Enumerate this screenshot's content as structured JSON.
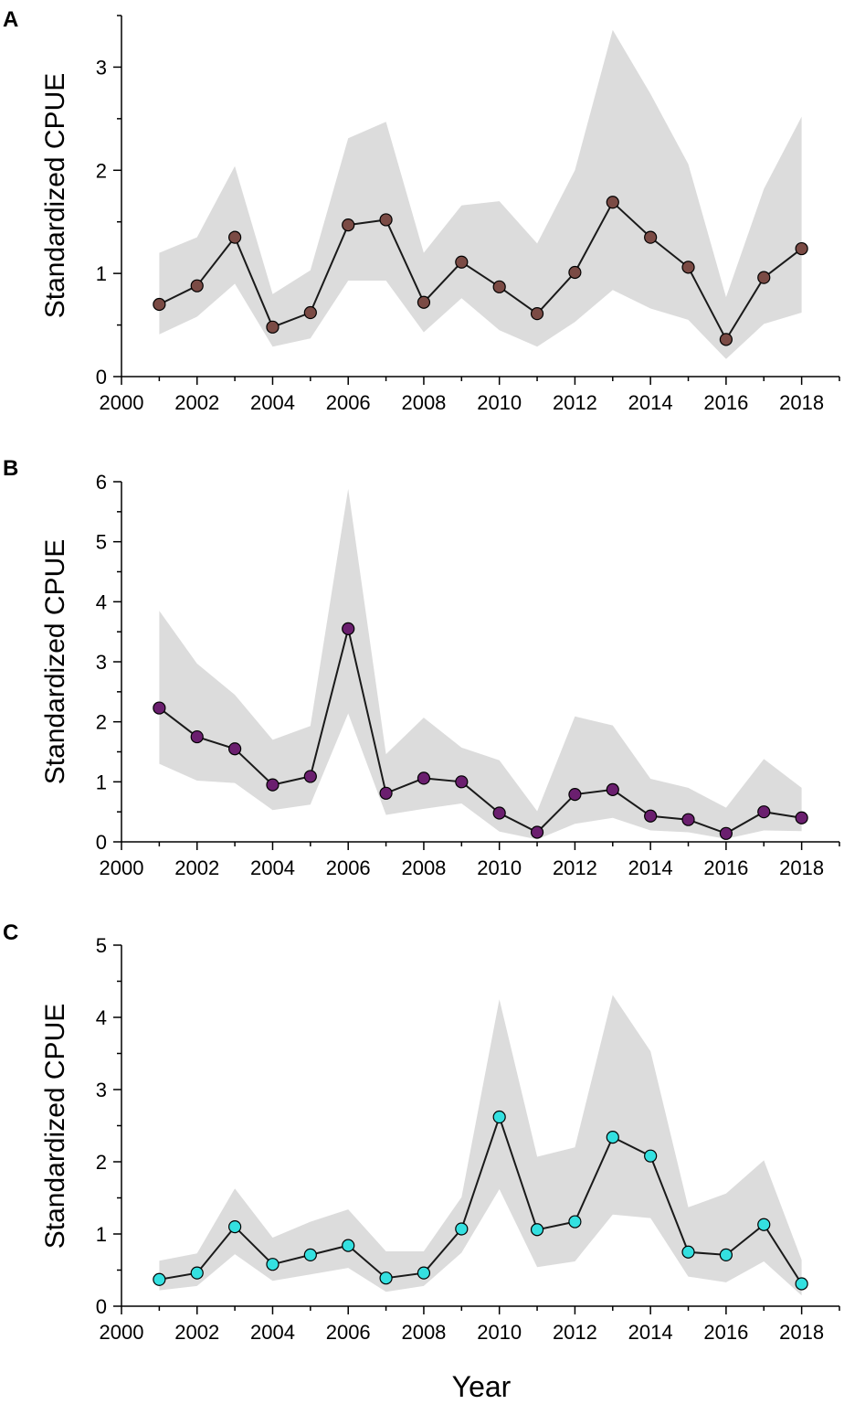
{
  "xaxis_title": "Year",
  "chart_data": [
    {
      "panel": "A",
      "type": "line",
      "ylabel": "Standardized CPUE",
      "ylim": [
        0,
        3.5
      ],
      "yticks": [
        0,
        1,
        2,
        3
      ],
      "xlim": [
        2000,
        2019
      ],
      "xticks": [
        2000,
        2002,
        2004,
        2006,
        2008,
        2010,
        2012,
        2014,
        2016,
        2018
      ],
      "marker_color": "#7b4b45",
      "x": [
        2001,
        2002,
        2003,
        2004,
        2005,
        2006,
        2007,
        2008,
        2009,
        2010,
        2011,
        2012,
        2013,
        2014,
        2015,
        2016,
        2017,
        2018
      ],
      "values": [
        0.7,
        0.88,
        1.35,
        0.48,
        0.62,
        1.47,
        1.52,
        0.72,
        1.11,
        0.87,
        0.61,
        1.01,
        1.69,
        1.35,
        1.06,
        0.36,
        0.96,
        1.24
      ],
      "lower": [
        0.41,
        0.58,
        0.9,
        0.29,
        0.37,
        0.93,
        0.93,
        0.43,
        0.76,
        0.45,
        0.29,
        0.53,
        0.84,
        0.66,
        0.55,
        0.17,
        0.51,
        0.62
      ],
      "upper": [
        1.2,
        1.35,
        2.04,
        0.8,
        1.03,
        2.31,
        2.47,
        1.2,
        1.66,
        1.7,
        1.29,
        2.0,
        3.36,
        2.74,
        2.06,
        0.77,
        1.82,
        2.52
      ]
    },
    {
      "panel": "B",
      "type": "line",
      "ylabel": "Standardized CPUE",
      "ylim": [
        0,
        6
      ],
      "yticks": [
        0,
        1,
        2,
        3,
        4,
        5,
        6
      ],
      "xlim": [
        2000,
        2019
      ],
      "xticks": [
        2000,
        2002,
        2004,
        2006,
        2008,
        2010,
        2012,
        2014,
        2016,
        2018
      ],
      "marker_color": "#6b1f6f",
      "x": [
        2001,
        2002,
        2003,
        2004,
        2005,
        2006,
        2007,
        2008,
        2009,
        2010,
        2011,
        2012,
        2013,
        2014,
        2015,
        2016,
        2017,
        2018
      ],
      "values": [
        2.23,
        1.75,
        1.55,
        0.95,
        1.09,
        3.55,
        0.81,
        1.06,
        1.0,
        0.48,
        0.16,
        0.79,
        0.87,
        0.43,
        0.37,
        0.14,
        0.5,
        0.4
      ],
      "lower": [
        1.3,
        1.02,
        0.98,
        0.53,
        0.62,
        2.14,
        0.45,
        0.55,
        0.64,
        0.17,
        0.04,
        0.3,
        0.4,
        0.19,
        0.16,
        0.05,
        0.19,
        0.18
      ],
      "upper": [
        3.85,
        2.97,
        2.45,
        1.7,
        1.93,
        5.88,
        1.46,
        2.07,
        1.57,
        1.36,
        0.51,
        2.09,
        1.94,
        1.05,
        0.9,
        0.57,
        1.38,
        0.9
      ]
    },
    {
      "panel": "C",
      "type": "line",
      "ylabel": "Standardized CPUE",
      "ylim": [
        0,
        5
      ],
      "yticks": [
        0,
        1,
        2,
        3,
        4,
        5
      ],
      "xlim": [
        2000,
        2019
      ],
      "xticks": [
        2000,
        2002,
        2004,
        2006,
        2008,
        2010,
        2012,
        2014,
        2016,
        2018
      ],
      "marker_color": "#34e0e0",
      "x": [
        2001,
        2002,
        2003,
        2004,
        2005,
        2006,
        2007,
        2008,
        2009,
        2010,
        2011,
        2012,
        2013,
        2014,
        2015,
        2016,
        2017,
        2018
      ],
      "values": [
        0.37,
        0.46,
        1.1,
        0.58,
        0.71,
        0.84,
        0.39,
        0.46,
        1.07,
        2.62,
        1.06,
        1.17,
        2.34,
        2.08,
        0.75,
        0.71,
        1.13,
        0.31
      ],
      "lower": [
        0.22,
        0.28,
        0.72,
        0.35,
        0.44,
        0.53,
        0.2,
        0.28,
        0.74,
        1.62,
        0.54,
        0.62,
        1.27,
        1.22,
        0.41,
        0.33,
        0.62,
        0.15
      ],
      "upper": [
        0.63,
        0.73,
        1.63,
        0.95,
        1.17,
        1.34,
        0.76,
        0.76,
        1.51,
        4.25,
        2.07,
        2.2,
        4.31,
        3.53,
        1.37,
        1.56,
        2.02,
        0.64
      ]
    }
  ]
}
